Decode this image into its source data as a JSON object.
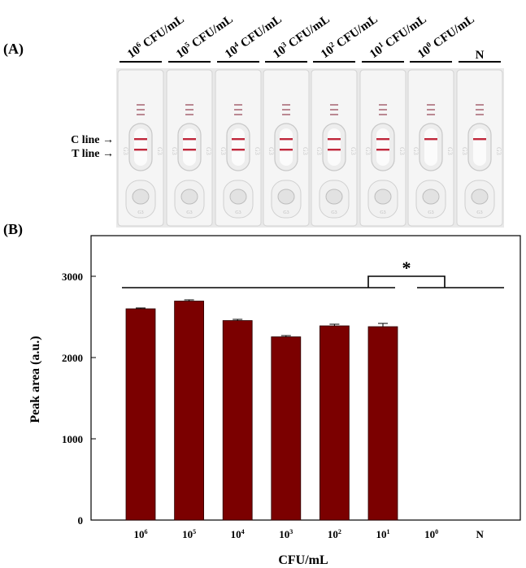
{
  "panel_a": {
    "label": "(A)",
    "strip_labels": [
      {
        "base": "10",
        "exp": "6",
        "unit": " CFU/mL"
      },
      {
        "base": "10",
        "exp": "5",
        "unit": " CFU/mL"
      },
      {
        "base": "10",
        "exp": "4",
        "unit": " CFU/mL"
      },
      {
        "base": "10",
        "exp": "3",
        "unit": " CFU/mL"
      },
      {
        "base": "10",
        "exp": "2",
        "unit": " CFU/mL"
      },
      {
        "base": "10",
        "exp": "1",
        "unit": " CFU/mL"
      },
      {
        "base": "10",
        "exp": "0",
        "unit": " CFU/mL"
      },
      {
        "base": "N",
        "exp": "",
        "unit": ""
      }
    ],
    "c_line_label": "C line →",
    "t_line_label": "T line →",
    "c_line_visible": [
      true,
      true,
      true,
      true,
      true,
      true,
      true,
      true
    ],
    "t_line_visible": [
      true,
      true,
      true,
      true,
      true,
      true,
      false,
      false
    ],
    "line_color": "#c0283c",
    "cassette_code": "G3"
  },
  "panel_b": {
    "label": "(B)",
    "significance_marker": "*",
    "bar_color": "#7b0000"
  },
  "chart_data": {
    "type": "bar",
    "categories": [
      {
        "base": "10",
        "exp": "6"
      },
      {
        "base": "10",
        "exp": "5"
      },
      {
        "base": "10",
        "exp": "4"
      },
      {
        "base": "10",
        "exp": "3"
      },
      {
        "base": "10",
        "exp": "2"
      },
      {
        "base": "10",
        "exp": "1"
      },
      {
        "base": "10",
        "exp": "0"
      },
      {
        "base": "N",
        "exp": ""
      }
    ],
    "values": [
      2600,
      2695,
      2455,
      2255,
      2390,
      2380,
      0,
      0
    ],
    "errors": [
      10,
      15,
      15,
      15,
      20,
      40,
      0,
      0
    ],
    "xlabel": "CFU/mL",
    "ylabel": "Peak area (a.u.)",
    "ylim": [
      0,
      3500
    ],
    "yticks": [
      "0",
      "1000",
      "2000",
      "3000"
    ],
    "grid": false,
    "legend": "none"
  }
}
